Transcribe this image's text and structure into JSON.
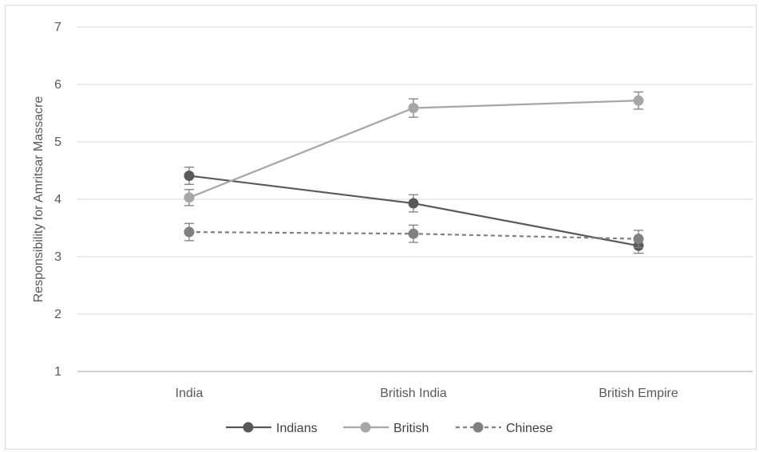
{
  "chart_data": {
    "type": "line",
    "title": "",
    "xlabel": "",
    "ylabel": "Responsibility for Amritsar Massacre",
    "categories": [
      "India",
      "British India",
      "British Empire"
    ],
    "ylim": [
      1,
      7
    ],
    "yticks": [
      1,
      2,
      3,
      4,
      5,
      6,
      7
    ],
    "grid": true,
    "legend_position": "bottom",
    "series": [
      {
        "name": "Indians",
        "values": [
          4.41,
          3.93,
          3.19
        ],
        "error": [
          0.15,
          0.15,
          0.13
        ],
        "color": "#595959",
        "dashed": false
      },
      {
        "name": "British",
        "values": [
          4.03,
          5.59,
          5.72
        ],
        "error": [
          0.14,
          0.16,
          0.15
        ],
        "color": "#a6a6a6",
        "dashed": false
      },
      {
        "name": "Chinese",
        "values": [
          3.43,
          3.4,
          3.31
        ],
        "error": [
          0.15,
          0.15,
          0.15
        ],
        "color": "#808080",
        "dashed": true
      }
    ]
  }
}
